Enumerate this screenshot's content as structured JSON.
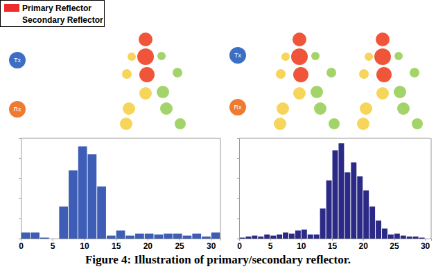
{
  "legend": {
    "entries": [
      {
        "label": "Primary Reflector",
        "color": "#ee2b2b"
      },
      {
        "label": "Secondary Reflector"
      }
    ]
  },
  "diagram": {
    "panels": [
      {
        "nodes": [
          "Tx",
          "Rx"
        ]
      },
      {
        "nodes": [
          "Tx",
          "Rx"
        ]
      }
    ]
  },
  "chart_data": [
    {
      "type": "histogram",
      "bins": [
        0,
        1.5,
        3,
        4.5,
        6,
        7.5,
        9,
        10.5,
        12,
        13.5,
        15,
        16.5,
        18,
        19.5,
        21,
        22.5,
        24,
        25.5,
        27,
        28.5,
        30,
        31.5
      ],
      "values": [
        6,
        6,
        1,
        0,
        32,
        68,
        92,
        84,
        52,
        3,
        8,
        3,
        5,
        5,
        4,
        5,
        5,
        3,
        5,
        2,
        6
      ],
      "color": "#3d5db6",
      "xlim": [
        0,
        31.5
      ],
      "ylim": [
        0,
        100
      ],
      "xticks": [
        0,
        5,
        10,
        15,
        20,
        25,
        30
      ],
      "yticks": [
        0,
        20,
        40,
        60,
        80,
        100
      ],
      "tick_labels": "x"
    },
    {
      "type": "histogram",
      "bins": [
        0,
        1,
        2,
        3,
        4,
        5,
        6,
        7,
        8,
        9,
        10,
        11,
        12,
        13,
        14,
        15,
        16,
        17,
        18,
        19,
        20,
        21,
        22,
        23,
        24,
        25,
        26,
        27,
        28,
        29,
        30,
        31
      ],
      "values": [
        1,
        2,
        3,
        2,
        4,
        3,
        4,
        6,
        5,
        8,
        9,
        4,
        4,
        30,
        58,
        88,
        95,
        66,
        76,
        62,
        48,
        32,
        18,
        10,
        4,
        5,
        3,
        2,
        2,
        1,
        0
      ],
      "color": "#2b2a86",
      "xlim": [
        0,
        31
      ],
      "ylim": [
        0,
        100
      ],
      "xticks": [
        0,
        5,
        10,
        15,
        20,
        25,
        30
      ],
      "yticks": [
        0,
        20,
        40,
        60,
        80,
        100
      ],
      "tick_labels": "x"
    }
  ],
  "caption": "Figure 4: Illustration of primary/secondary reflector."
}
